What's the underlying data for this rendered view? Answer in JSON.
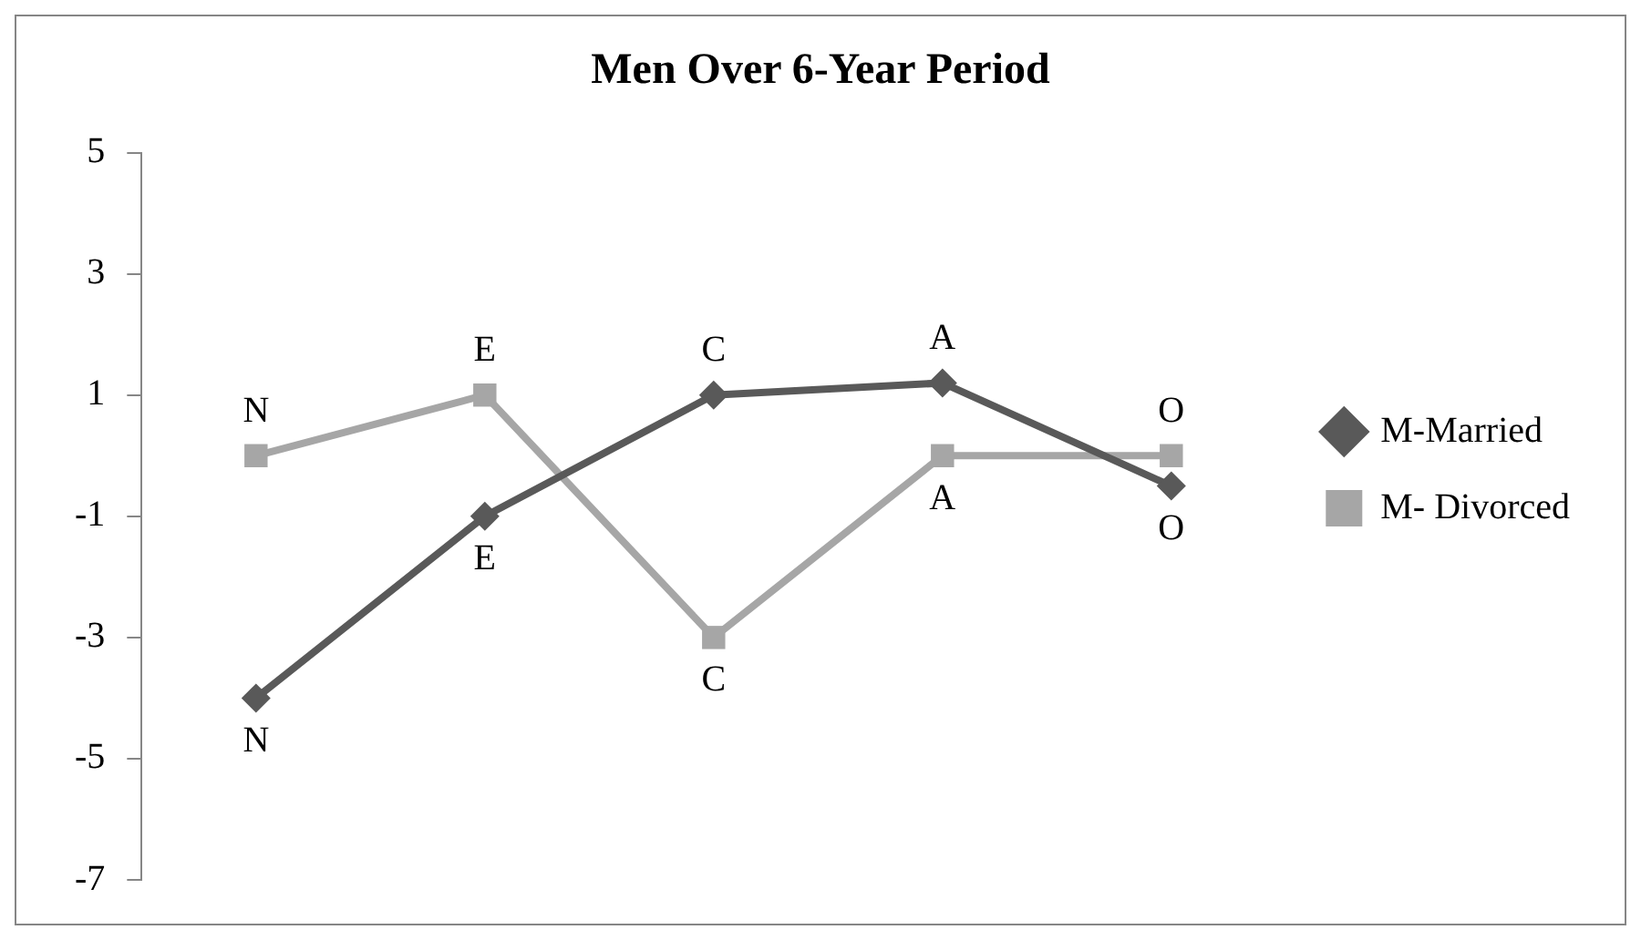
{
  "chart_data": {
    "type": "line",
    "title": "Men Over 6-Year Period",
    "categories": [
      null,
      null,
      null,
      null,
      null
    ],
    "series": [
      {
        "name": "M-Married",
        "color": "#595959",
        "marker": "diamond",
        "values": [
          -4,
          -1,
          1,
          1.2,
          -0.5
        ],
        "value_labels": [
          "N",
          "E",
          "C",
          "A",
          "O"
        ]
      },
      {
        "name": "M- Divorced",
        "color": "#a6a6a6",
        "marker": "square",
        "values": [
          0,
          1,
          -3,
          0,
          0
        ],
        "value_labels": [
          "N",
          "E",
          "C",
          "A",
          "O"
        ]
      }
    ],
    "ylim": [
      -7,
      5
    ],
    "yticks": [
      -7,
      -5,
      -3,
      -1,
      1,
      3,
      5
    ],
    "grid": false,
    "legend": "right"
  }
}
